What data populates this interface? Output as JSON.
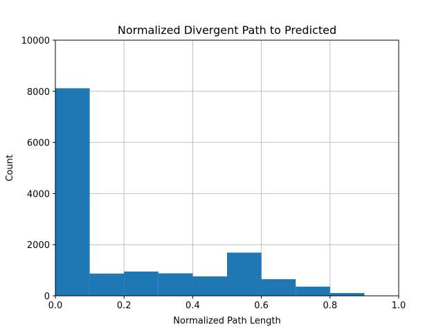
{
  "chart_data": {
    "type": "bar",
    "title": "Normalized Divergent Path to Predicted",
    "xlabel": "Normalized Path Length",
    "ylabel": "Count",
    "bins": [
      {
        "x0": 0.0,
        "x1": 0.1,
        "value": 8120
      },
      {
        "x0": 0.1,
        "x1": 0.2,
        "value": 870
      },
      {
        "x0": 0.2,
        "x1": 0.3,
        "value": 950
      },
      {
        "x0": 0.3,
        "x1": 0.4,
        "value": 880
      },
      {
        "x0": 0.4,
        "x1": 0.5,
        "value": 760
      },
      {
        "x0": 0.5,
        "x1": 0.6,
        "value": 1690
      },
      {
        "x0": 0.6,
        "x1": 0.7,
        "value": 650
      },
      {
        "x0": 0.7,
        "x1": 0.8,
        "value": 360
      },
      {
        "x0": 0.8,
        "x1": 0.9,
        "value": 110
      },
      {
        "x0": 0.9,
        "x1": 1.0,
        "value": 0
      }
    ],
    "xlim": [
      0.0,
      1.0
    ],
    "ylim": [
      0,
      10000
    ],
    "xticks": [
      "0.0",
      "0.2",
      "0.4",
      "0.6",
      "0.8",
      "1.0"
    ],
    "yticks": [
      "0",
      "2000",
      "4000",
      "6000",
      "8000",
      "10000"
    ],
    "grid": true,
    "bar_color": "#1f77b4"
  }
}
